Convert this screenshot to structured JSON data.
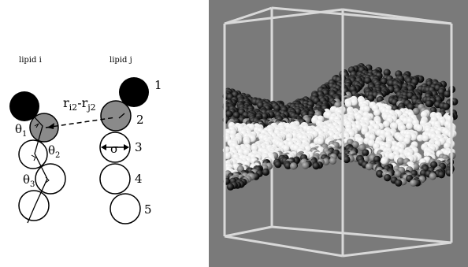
{
  "left_panel": {
    "lipid_i_label": "lipid i",
    "lipid_j_label": "lipid j",
    "bead_numbers": [
      "1",
      "2",
      "3",
      "4",
      "5"
    ],
    "distance_label": {
      "r": "r",
      "i2": "i2",
      "minus": "-r",
      "j2": "j2"
    },
    "angle_labels": [
      {
        "sym": "θ",
        "sub": "1"
      },
      {
        "sym": "θ",
        "sub": "2"
      },
      {
        "sym": "θ",
        "sub": "3"
      }
    ],
    "sigma_label": "σ"
  },
  "colors": {
    "head_bead": "#000000",
    "glycerol_bead": "#8a8a8a",
    "tail_bead": "#ffffff",
    "background_panel": "#7a7a7a",
    "box_edge": "#d8d8d8"
  }
}
